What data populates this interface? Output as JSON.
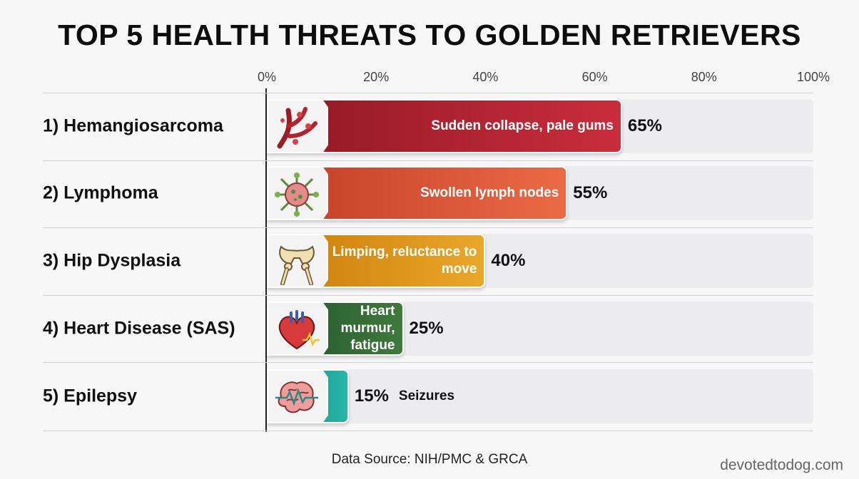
{
  "chart_data": {
    "type": "bar",
    "orientation": "horizontal",
    "title": "TOP 5 HEALTH THREATS TO GOLDEN RETRIEVERS",
    "xlim": [
      0,
      100
    ],
    "x_ticks": [
      "0%",
      "20%",
      "40%",
      "60%",
      "80%",
      "100%"
    ],
    "categories": [
      "1) Hemangiosarcoma",
      "2) Lymphoma",
      "3) Hip Dysplasia",
      "4) Heart Disease (SAS)",
      "5) Epilepsy"
    ],
    "values": [
      65,
      55,
      40,
      25,
      15
    ],
    "value_labels": [
      "65%",
      "55%",
      "40%",
      "25%",
      "15%"
    ],
    "descriptions": [
      "Sudden collapse, pale gums",
      "Swollen lymph nodes",
      "Limping, reluctance to move",
      "Heart murmur, fatigue",
      "Seizures"
    ],
    "bar_colors": [
      [
        "#8f1724",
        "#c92d3c"
      ],
      [
        "#c23b26",
        "#ea6a45"
      ],
      [
        "#c97a06",
        "#e9a72a"
      ],
      [
        "#21502a",
        "#3f7a3c"
      ],
      [
        "#137c7a",
        "#27b7a9"
      ]
    ],
    "icons": [
      "blood-vessels-icon",
      "lymph-node-icon",
      "hip-bone-icon",
      "heart-icon",
      "brain-icon"
    ],
    "grid": false
  },
  "footer": {
    "source": "Data Source: NIH/PMC & GRCA",
    "watermark": "devotedtodog.com"
  }
}
